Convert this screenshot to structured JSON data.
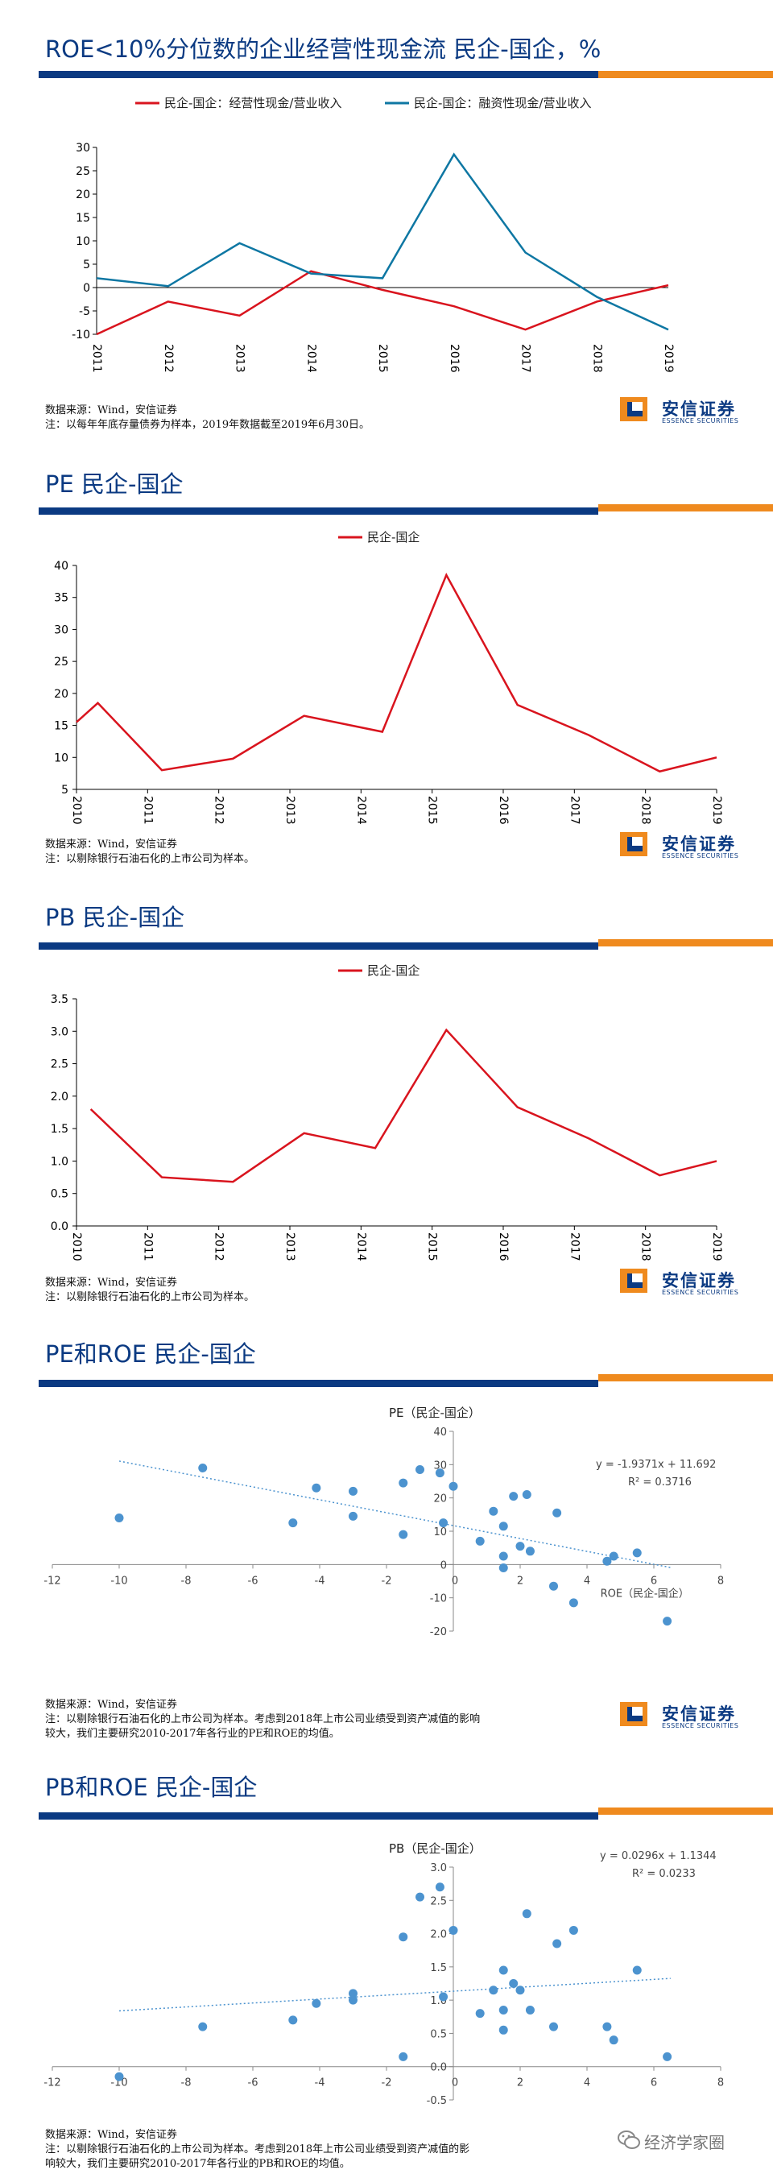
{
  "source_note": "数据来源：Wind，安信证券",
  "brand": {
    "name_cn": "安信证券",
    "name_en": "ESSENCE SECURITIES"
  },
  "watermark": "经济学家圈",
  "colors": {
    "title_blue": "#0b3a82",
    "accent_orange": "#ef8a1e",
    "red_line": "#d9141e",
    "teal_line": "#0e77a3",
    "scatter_blue": "#4c93cf"
  },
  "chart_data": [
    {
      "type": "line",
      "title": "ROE<10%分位数的企业经营性现金流 民企-国企，%",
      "note": "注：以每年年底存量债券为样本，2019年数据截至2019年6月30日。",
      "x": [
        "2011",
        "2012",
        "2013",
        "2014",
        "2015",
        "2016",
        "2017",
        "2018",
        "2019"
      ],
      "series": [
        {
          "name": "民企-国企：经营性现金/营业收入",
          "color": "#d9141e",
          "values": [
            -10,
            -3,
            -6,
            3.5,
            -0.5,
            -4,
            -9,
            -3,
            0.5
          ]
        },
        {
          "name": "民企-国企：融资性现金/营业收入",
          "color": "#0e77a3",
          "values": [
            2,
            0.3,
            9.5,
            3,
            2,
            28.5,
            7.5,
            -2,
            -9
          ]
        }
      ],
      "ylim": [
        -10,
        30
      ],
      "yticks": [
        -10,
        -5,
        0,
        5,
        10,
        15,
        20,
        25,
        30
      ],
      "legend": "top"
    },
    {
      "type": "line",
      "title": "PE 民企-国企",
      "note": "注：以剔除银行石油石化的上市公司为样本。",
      "x_ticks": [
        "2010",
        "2011",
        "2012",
        "2013",
        "2014",
        "2015",
        "2016",
        "2017",
        "2018",
        "2019"
      ],
      "x": [
        2010,
        2010.3,
        2011.2,
        2012.2,
        2013.2,
        2014.3,
        2015.2,
        2016.2,
        2017.2,
        2018.2,
        2019
      ],
      "series": [
        {
          "name": "民企-国企",
          "color": "#d9141e",
          "values": [
            15.5,
            18.5,
            8,
            9.8,
            16.5,
            14,
            38.5,
            18.2,
            13.5,
            7.8,
            10
          ]
        }
      ],
      "ylim": [
        5,
        40
      ],
      "yticks": [
        5,
        10,
        15,
        20,
        25,
        30,
        35,
        40
      ],
      "legend": "top"
    },
    {
      "type": "line",
      "title": "PB 民企-国企",
      "note": "注：以剔除银行石油石化的上市公司为样本。",
      "x_ticks": [
        "2010",
        "2011",
        "2012",
        "2013",
        "2014",
        "2015",
        "2016",
        "2017",
        "2018",
        "2019"
      ],
      "x": [
        2010.2,
        2011.2,
        2012.2,
        2013.2,
        2014.2,
        2015.2,
        2016.2,
        2017.2,
        2018.2,
        2019
      ],
      "series": [
        {
          "name": "民企-国企",
          "color": "#d9141e",
          "values": [
            1.8,
            0.75,
            0.68,
            1.43,
            1.2,
            3.02,
            1.83,
            1.35,
            0.78,
            1.0
          ]
        }
      ],
      "ylim": [
        0,
        3.5
      ],
      "yticks": [
        "0.0",
        "0.5",
        "1.0",
        "1.5",
        "2.0",
        "2.5",
        "3.0",
        "3.5"
      ],
      "legend": "top"
    },
    {
      "type": "scatter",
      "title": "PE和ROE 民企-国企",
      "subtitle": "PE（民企-国企）",
      "xlabel": "ROE（民企-国企）",
      "note": "注：以剔除银行石油石化的上市公司为样本。考虑到2018年上市公司业绩受到资产减值的影响较大，我们主要研究2010-2017年各行业的PE和ROE的均值。",
      "note_lines": [
        "注：以剔除银行石油石化的上市公司为样本。考虑到2018年上市公司业绩受到资产减值的影响",
        "较大，我们主要研究2010-2017年各行业的PE和ROE的均值。"
      ],
      "equation": "y = -1.9371x + 11.692",
      "r2": "R² = 0.3716",
      "trend": {
        "slope": -1.9371,
        "intercept": 11.692,
        "x_range": [
          -10,
          6.5
        ]
      },
      "xlim": [
        -12,
        8
      ],
      "ylim": [
        -20,
        40
      ],
      "xticks": [
        -12,
        -10,
        -8,
        -6,
        -4,
        -2,
        0,
        2,
        4,
        6,
        8
      ],
      "yticks": [
        -20,
        -10,
        0,
        10,
        20,
        30,
        40
      ],
      "points": [
        [
          -10,
          14
        ],
        [
          -7.5,
          29
        ],
        [
          -4.8,
          12.5
        ],
        [
          -4.1,
          23
        ],
        [
          -3,
          22
        ],
        [
          -3,
          14.5
        ],
        [
          -1.5,
          24.5
        ],
        [
          -1,
          28.5
        ],
        [
          -0.4,
          27.5
        ],
        [
          -1.5,
          9
        ],
        [
          0,
          23.5
        ],
        [
          -0.3,
          12.5
        ],
        [
          0.8,
          7
        ],
        [
          1.2,
          16
        ],
        [
          1.5,
          11.5
        ],
        [
          1.8,
          20.5
        ],
        [
          2.2,
          21
        ],
        [
          1.5,
          2.5
        ],
        [
          2,
          5.5
        ],
        [
          2.3,
          4
        ],
        [
          1.5,
          -1
        ],
        [
          3,
          -6.5
        ],
        [
          3.1,
          15.5
        ],
        [
          3.6,
          -11.5
        ],
        [
          4.6,
          1
        ],
        [
          4.8,
          2.5
        ],
        [
          5.5,
          3.5
        ],
        [
          6.4,
          -17
        ]
      ]
    },
    {
      "type": "scatter",
      "title": "PB和ROE 民企-国企",
      "subtitle": "PB（民企-国企）",
      "note": "注：以剔除银行石油石化的上市公司为样本。考虑到2018年上市公司业绩受到资产减值的影响较大，我们主要研究2010-2017年各行业的PB和ROE的均值。",
      "note_lines": [
        "注：以剔除银行石油石化的上市公司为样本。考虑到2018年上市公司业绩受到资产减值的影",
        "响较大，我们主要研究2010-2017年各行业的PB和ROE的均值。"
      ],
      "equation": "y = 0.0296x + 1.1344",
      "r2": "R² = 0.0233",
      "trend": {
        "slope": 0.0296,
        "intercept": 1.1344,
        "x_range": [
          -10,
          6.5
        ]
      },
      "xlim": [
        -12,
        8
      ],
      "ylim": [
        -0.5,
        3
      ],
      "xticks": [
        -12,
        -10,
        -8,
        -6,
        -4,
        -2,
        0,
        2,
        4,
        6,
        8
      ],
      "yticks": [
        "-0.5",
        "0.0",
        "0.5",
        "1.0",
        "1.5",
        "2.0",
        "2.5",
        "3.0"
      ],
      "points": [
        [
          -10,
          -0.15
        ],
        [
          -7.5,
          0.6
        ],
        [
          -4.8,
          0.7
        ],
        [
          -4.1,
          0.95
        ],
        [
          -3,
          1.1
        ],
        [
          -3,
          1.0
        ],
        [
          -1.5,
          1.95
        ],
        [
          -1,
          2.55
        ],
        [
          -0.4,
          2.7
        ],
        [
          -1.5,
          0.15
        ],
        [
          0,
          2.05
        ],
        [
          -0.3,
          1.05
        ],
        [
          0.8,
          0.8
        ],
        [
          1.2,
          1.15
        ],
        [
          1.5,
          1.45
        ],
        [
          1.8,
          1.25
        ],
        [
          2.2,
          2.3
        ],
        [
          1.5,
          0.85
        ],
        [
          2,
          1.15
        ],
        [
          2.3,
          0.85
        ],
        [
          1.5,
          0.55
        ],
        [
          3,
          0.6
        ],
        [
          3.1,
          1.85
        ],
        [
          3.6,
          2.05
        ],
        [
          4.6,
          0.6
        ],
        [
          4.8,
          0.4
        ],
        [
          5.5,
          1.45
        ],
        [
          6.4,
          0.15
        ]
      ]
    }
  ]
}
